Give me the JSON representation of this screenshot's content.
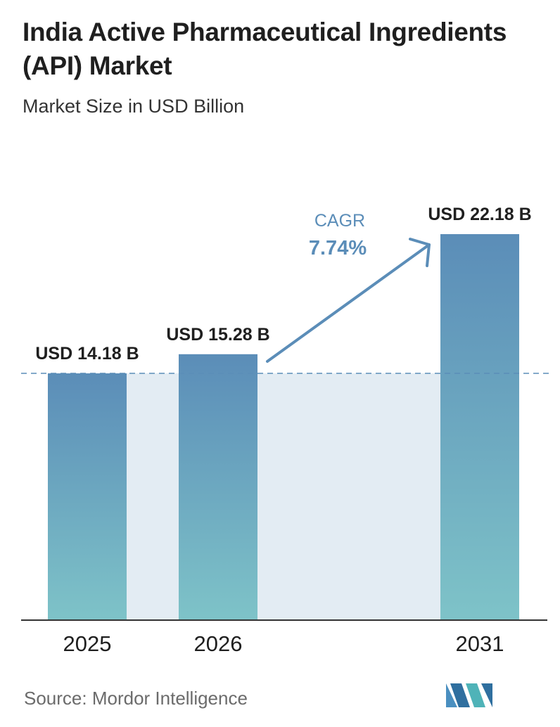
{
  "header": {
    "title": "India Active Pharmaceutical Ingredients (API) Market",
    "subtitle": "Market Size in USD Billion"
  },
  "chart_data": {
    "type": "bar",
    "categories": [
      "2025",
      "2026",
      "2031"
    ],
    "values": [
      14.18,
      15.28,
      22.18
    ],
    "value_labels": [
      "USD 14.18 B",
      "USD 15.28 B",
      "USD 22.18 B"
    ],
    "title": "India Active Pharmaceutical Ingredients (API) Market",
    "subtitle": "Market Size in USD Billion",
    "xlabel": "",
    "ylabel": "",
    "ylim": [
      0,
      22.18
    ],
    "grid": false,
    "annotation": {
      "label": "CAGR",
      "value": "7.74%"
    },
    "colors": {
      "bar_top": "#5b8db8",
      "bar_bottom": "#7ec3c8",
      "shade": "#e3ecf3",
      "arrow": "#5b8db8",
      "dashed_line": "#5b8db8",
      "axis": "#333333"
    }
  },
  "footer": {
    "source": "Source: Mordor Intelligence",
    "logo_text": "Mordor Intelligence"
  }
}
